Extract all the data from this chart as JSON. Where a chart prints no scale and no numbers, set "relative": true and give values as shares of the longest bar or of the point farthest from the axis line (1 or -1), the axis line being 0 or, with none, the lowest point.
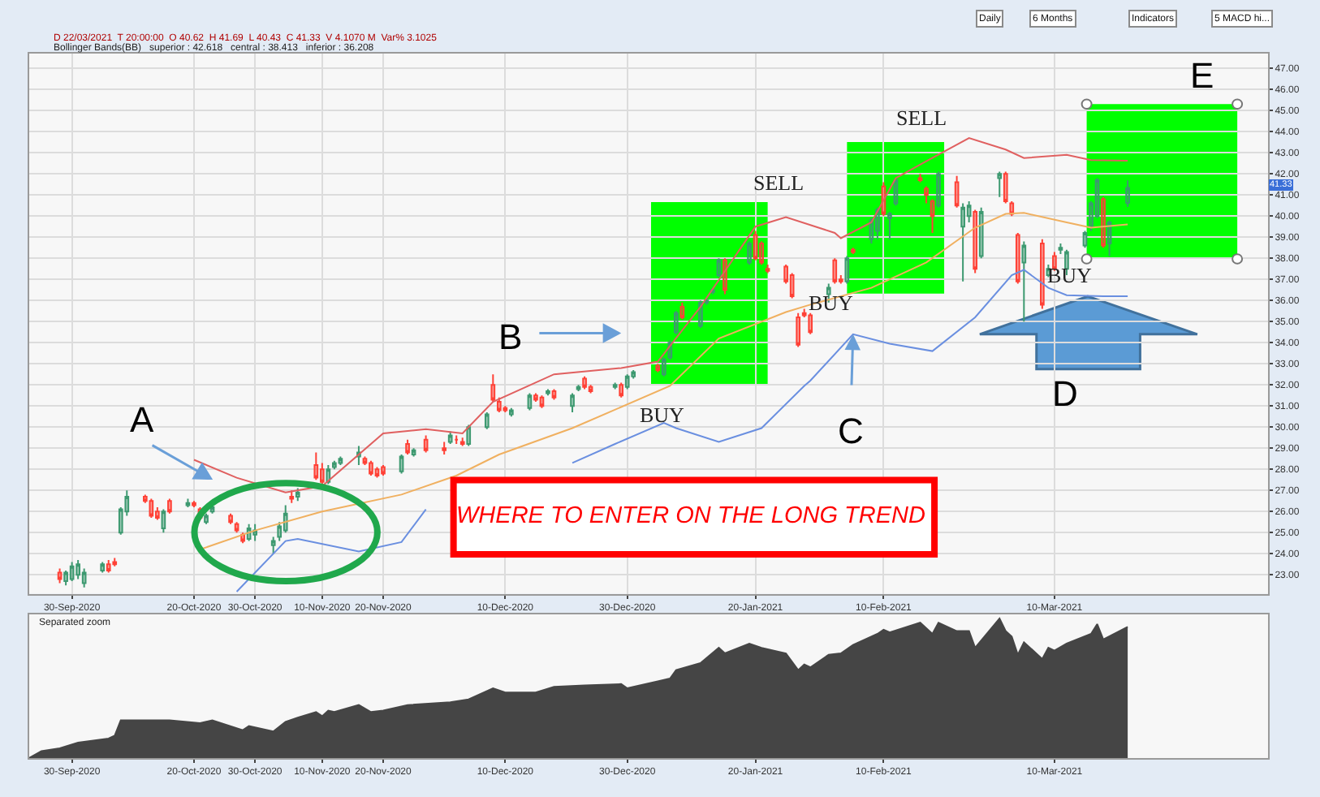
{
  "chart_data": [
    {
      "type": "candlestick",
      "x": [
        "2020-09-28",
        "2020-09-29",
        "2020-09-30",
        "2020-10-01",
        "2020-10-02",
        "2020-10-05",
        "2020-10-06",
        "2020-10-07",
        "2020-10-08",
        "2020-10-09",
        "2020-10-12",
        "2020-10-13",
        "2020-10-14",
        "2020-10-15",
        "2020-10-16",
        "2020-10-19",
        "2020-10-20",
        "2020-10-21",
        "2020-10-22",
        "2020-10-23",
        "2020-10-26",
        "2020-10-27",
        "2020-10-28",
        "2020-10-29",
        "2020-10-30",
        "2020-11-02",
        "2020-11-03",
        "2020-11-04",
        "2020-11-05",
        "2020-11-06",
        "2020-11-09",
        "2020-11-10",
        "2020-11-11",
        "2020-11-12",
        "2020-11-13",
        "2020-11-16",
        "2020-11-17",
        "2020-11-18",
        "2020-11-19",
        "2020-11-20",
        "2020-11-23",
        "2020-11-24",
        "2020-11-25",
        "2020-11-27",
        "2020-11-30",
        "2020-12-01",
        "2020-12-02",
        "2020-12-03",
        "2020-12-04",
        "2020-12-07",
        "2020-12-08",
        "2020-12-09",
        "2020-12-10",
        "2020-12-11",
        "2020-12-14",
        "2020-12-15",
        "2020-12-16",
        "2020-12-17",
        "2020-12-18",
        "2020-12-21",
        "2020-12-22",
        "2020-12-23",
        "2020-12-24",
        "2020-12-28",
        "2020-12-29",
        "2020-12-30",
        "2020-12-31",
        "2021-01-04",
        "2021-01-05",
        "2021-01-06",
        "2021-01-07",
        "2021-01-08",
        "2021-01-11",
        "2021-01-12",
        "2021-01-13",
        "2021-01-14",
        "2021-01-15",
        "2021-01-19",
        "2021-01-20",
        "2021-01-21",
        "2021-01-22",
        "2021-01-25",
        "2021-01-26",
        "2021-01-27",
        "2021-01-28",
        "2021-01-29",
        "2021-02-01",
        "2021-02-02",
        "2021-02-03",
        "2021-02-04",
        "2021-02-05",
        "2021-02-08",
        "2021-02-09",
        "2021-02-10",
        "2021-02-11",
        "2021-02-12",
        "2021-02-16",
        "2021-02-17",
        "2021-02-18",
        "2021-02-19",
        "2021-02-22",
        "2021-02-23",
        "2021-02-24",
        "2021-02-25",
        "2021-02-26",
        "2021-03-01",
        "2021-03-02",
        "2021-03-03",
        "2021-03-04",
        "2021-03-05",
        "2021-03-08",
        "2021-03-09",
        "2021-03-10",
        "2021-03-11",
        "2021-03-12",
        "2021-03-15",
        "2021-03-16",
        "2021-03-17",
        "2021-03-18",
        "2021-03-19",
        "2021-03-22"
      ],
      "ohlc": [
        [
          23.1,
          23.3,
          22.6,
          22.8
        ],
        [
          22.7,
          23.2,
          22.5,
          23.1
        ],
        [
          22.8,
          23.6,
          22.7,
          23.4
        ],
        [
          23.0,
          23.7,
          22.8,
          23.5
        ],
        [
          22.6,
          23.3,
          22.4,
          23.1
        ],
        [
          23.2,
          23.6,
          23.1,
          23.5
        ],
        [
          23.5,
          23.7,
          23.1,
          23.2
        ],
        [
          23.6,
          23.8,
          23.4,
          23.5
        ],
        [
          25.0,
          26.2,
          24.9,
          26.1
        ],
        [
          26.0,
          27.0,
          25.8,
          26.7
        ],
        [
          26.7,
          26.8,
          26.4,
          26.5
        ],
        [
          26.5,
          26.6,
          25.7,
          25.8
        ],
        [
          26.0,
          26.2,
          25.6,
          25.7
        ],
        [
          25.2,
          26.1,
          25.0,
          26.0
        ],
        [
          26.5,
          26.6,
          25.9,
          26.0
        ],
        [
          26.3,
          26.6,
          26.2,
          26.4
        ],
        [
          26.4,
          26.5,
          26.2,
          26.3
        ],
        [
          26.1,
          26.2,
          25.6,
          25.7
        ],
        [
          25.5,
          25.9,
          25.4,
          25.8
        ],
        [
          26.0,
          26.3,
          25.9,
          26.2
        ],
        [
          25.8,
          25.9,
          25.4,
          25.5
        ],
        [
          25.4,
          25.5,
          25.0,
          25.1
        ],
        [
          24.9,
          25.0,
          24.5,
          24.6
        ],
        [
          24.7,
          25.4,
          24.6,
          25.2
        ],
        [
          24.9,
          25.4,
          24.6,
          25.1
        ],
        [
          24.4,
          24.8,
          24.0,
          24.6
        ],
        [
          24.8,
          25.5,
          24.6,
          25.3
        ],
        [
          25.1,
          26.3,
          25.0,
          25.9
        ],
        [
          26.7,
          27.0,
          26.4,
          26.6
        ],
        [
          26.7,
          27.1,
          26.5,
          26.9
        ],
        [
          28.2,
          28.8,
          27.5,
          27.6
        ],
        [
          28.0,
          28.3,
          27.3,
          27.4
        ],
        [
          27.4,
          28.2,
          27.3,
          28.0
        ],
        [
          28.1,
          28.4,
          28.0,
          28.3
        ],
        [
          28.3,
          28.6,
          28.2,
          28.5
        ],
        [
          28.6,
          29.1,
          28.2,
          28.8
        ],
        [
          28.5,
          28.6,
          28.2,
          28.3
        ],
        [
          28.3,
          28.4,
          27.7,
          27.8
        ],
        [
          28.0,
          28.1,
          27.6,
          27.7
        ],
        [
          28.1,
          28.2,
          27.7,
          27.8
        ],
        [
          27.9,
          28.7,
          27.8,
          28.6
        ],
        [
          29.2,
          29.4,
          28.7,
          28.8
        ],
        [
          28.7,
          29.0,
          28.6,
          28.9
        ],
        [
          29.4,
          29.6,
          28.8,
          28.9
        ],
        [
          29.0,
          29.3,
          28.7,
          28.9
        ],
        [
          29.3,
          29.8,
          29.2,
          29.6
        ],
        [
          29.4,
          29.6,
          29.2,
          29.4
        ],
        [
          29.3,
          29.5,
          29.1,
          29.2
        ],
        [
          29.2,
          30.1,
          29.1,
          30.0
        ],
        [
          30.0,
          30.7,
          29.9,
          30.6
        ],
        [
          32.0,
          32.5,
          31.2,
          31.3
        ],
        [
          31.2,
          31.4,
          30.7,
          30.8
        ],
        [
          30.9,
          31.0,
          30.7,
          30.8
        ],
        [
          30.6,
          30.9,
          30.5,
          30.8
        ],
        [
          30.9,
          31.6,
          30.8,
          31.5
        ],
        [
          31.5,
          31.6,
          31.2,
          31.3
        ],
        [
          31.4,
          31.5,
          30.9,
          31.0
        ],
        [
          31.6,
          31.8,
          31.5,
          31.7
        ],
        [
          31.7,
          31.8,
          31.3,
          31.4
        ],
        [
          31.0,
          31.6,
          30.7,
          31.5
        ],
        [
          31.8,
          32.0,
          31.7,
          31.9
        ],
        [
          32.3,
          32.4,
          31.8,
          31.9
        ],
        [
          31.9,
          32.0,
          31.6,
          31.7
        ],
        [
          31.9,
          32.1,
          31.8,
          32.0
        ],
        [
          32.0,
          32.1,
          31.4,
          31.5
        ],
        [
          31.9,
          32.5,
          31.8,
          32.4
        ],
        [
          32.4,
          32.7,
          32.3,
          32.6
        ],
        [
          32.9,
          33.0,
          32.6,
          32.7
        ],
        [
          32.5,
          33.3,
          32.4,
          33.2
        ],
        [
          33.3,
          34.1,
          33.2,
          34.0
        ],
        [
          34.5,
          35.5,
          34.4,
          35.4
        ],
        [
          35.7,
          35.9,
          35.1,
          35.2
        ],
        [
          34.8,
          36.0,
          34.7,
          35.9
        ],
        [
          35.9,
          36.1,
          35.8,
          36.0
        ],
        [
          36.4,
          36.6,
          36.3,
          36.5
        ],
        [
          37.2,
          38.0,
          37.1,
          37.9
        ],
        [
          37.9,
          38.0,
          36.3,
          36.5
        ],
        [
          37.8,
          38.8,
          37.7,
          38.7
        ],
        [
          39.1,
          39.3,
          37.9,
          38.0
        ],
        [
          38.7,
          38.8,
          37.7,
          37.8
        ],
        [
          37.5,
          37.7,
          37.3,
          37.4
        ],
        [
          37.6,
          37.7,
          36.8,
          36.9
        ],
        [
          37.2,
          37.3,
          36.1,
          36.2
        ],
        [
          35.2,
          35.4,
          33.8,
          33.9
        ],
        [
          35.4,
          35.6,
          35.2,
          35.3
        ],
        [
          35.3,
          35.4,
          34.4,
          34.5
        ],
        [
          36.3,
          36.8,
          35.9,
          36.6
        ],
        [
          37.9,
          38.0,
          36.8,
          36.9
        ],
        [
          37.0,
          37.2,
          36.8,
          36.9
        ],
        [
          36.9,
          38.1,
          36.8,
          38.0
        ],
        [
          38.4,
          38.5,
          38.2,
          38.3
        ],
        [
          38.9,
          39.9,
          38.7,
          39.8
        ],
        [
          39.3,
          40.4,
          38.9,
          40.3
        ],
        [
          41.4,
          41.6,
          40.0,
          40.1
        ],
        [
          39.9,
          40.2,
          38.9,
          40.1
        ],
        [
          40.6,
          41.8,
          40.5,
          41.7
        ],
        [
          41.8,
          42.0,
          41.6,
          41.7
        ],
        [
          41.3,
          41.4,
          40.6,
          41.0
        ],
        [
          40.7,
          40.8,
          39.2,
          40.0
        ],
        [
          40.5,
          42.1,
          40.4,
          42.0
        ],
        [
          41.6,
          41.9,
          40.4,
          40.5
        ],
        [
          39.5,
          40.6,
          36.9,
          40.4
        ],
        [
          40.0,
          40.7,
          39.7,
          40.5
        ],
        [
          40.2,
          40.3,
          37.3,
          37.5
        ],
        [
          38.1,
          40.4,
          38.0,
          40.2
        ],
        [
          41.8,
          42.1,
          40.9,
          42.0
        ],
        [
          42.0,
          42.1,
          40.6,
          40.7
        ],
        [
          40.6,
          40.7,
          40.0,
          40.1
        ],
        [
          39.1,
          39.2,
          36.8,
          36.9
        ],
        [
          37.8,
          38.8,
          35.0,
          38.6
        ],
        [
          38.7,
          38.9,
          35.6,
          35.8
        ],
        [
          37.2,
          37.7,
          37.1,
          37.5
        ],
        [
          38.1,
          38.3,
          37.4,
          37.5
        ],
        [
          38.4,
          38.7,
          38.2,
          38.5
        ],
        [
          37.5,
          38.4,
          37.2,
          38.3
        ],
        [
          38.6,
          39.3,
          38.5,
          39.2
        ],
        [
          39.5,
          40.7,
          39.3,
          40.6
        ],
        [
          40.0,
          41.8,
          39.9,
          41.7
        ],
        [
          40.8,
          40.9,
          38.5,
          38.6
        ],
        [
          38.7,
          39.8,
          38.1,
          39.7
        ],
        [
          40.62,
          41.69,
          40.43,
          41.33
        ]
      ],
      "series": [
        {
          "type": "line",
          "color": "#e06060",
          "x": [
            "2020-10-20",
            "2020-10-27",
            "2020-11-04",
            "2020-11-10",
            "2020-11-20",
            "2020-11-27",
            "2020-12-03",
            "2020-12-08",
            "2020-12-18",
            "2020-12-29",
            "2021-01-04",
            "2021-01-11",
            "2021-01-20",
            "2021-01-25",
            "2021-02-02",
            "2021-02-03",
            "2021-02-08",
            "2021-02-12",
            "2021-02-17",
            "2021-02-24",
            "2021-03-02",
            "2021-03-05",
            "2021-03-12",
            "2021-03-16",
            "2021-03-22"
          ],
          "values": [
            28.45,
            27.6,
            26.9,
            27.2,
            29.7,
            29.9,
            29.7,
            31.2,
            32.5,
            32.8,
            33.1,
            35.7,
            39.5,
            39.95,
            39.2,
            38.95,
            39.7,
            41.8,
            42.6,
            43.7,
            43.15,
            42.75,
            42.9,
            42.65,
            42.62
          ]
        },
        {
          "type": "line",
          "color": "#f0b060",
          "x": [
            "2020-10-21",
            "2020-10-30",
            "2020-11-10",
            "2020-11-23",
            "2020-12-02",
            "2020-12-09",
            "2020-12-21",
            "2021-01-06",
            "2021-01-14",
            "2021-01-25",
            "2021-01-29",
            "2021-02-08",
            "2021-02-17",
            "2021-02-25",
            "2021-03-02",
            "2021-03-05",
            "2021-03-12",
            "2021-03-16",
            "2021-03-22"
          ],
          "values": [
            24.2,
            25.1,
            26.0,
            26.8,
            27.7,
            28.7,
            29.95,
            31.95,
            34.2,
            35.45,
            35.8,
            36.6,
            37.8,
            39.45,
            40.1,
            40.15,
            39.7,
            39.45,
            39.6
          ]
        },
        {
          "type": "line",
          "color": "#6a8fe0",
          "x": [
            "2020-10-27",
            "2020-11-04",
            "2020-11-06",
            "2020-11-16",
            "2020-11-23",
            "2020-11-27",
            "2020-11-30",
            "2020-12-21",
            "2020-12-28",
            "2021-01-05",
            "2021-01-07",
            "2021-01-14",
            "2021-01-21",
            "2021-01-28",
            "2021-01-29",
            "2021-02-05",
            "2021-02-11",
            "2021-02-18",
            "2021-02-25",
            "2021-03-03",
            "2021-03-05",
            "2021-03-09",
            "2021-03-12",
            "2021-03-18",
            "2021-03-22"
          ],
          "values": [
            22.2,
            24.6,
            24.7,
            24.1,
            24.55,
            26.1,
            null,
            28.3,
            29.2,
            30.2,
            29.95,
            29.3,
            29.95,
            31.95,
            32.2,
            34.4,
            33.95,
            33.6,
            35.2,
            37.2,
            37.45,
            36.6,
            36.25,
            36.2,
            36.2
          ]
        }
      ],
      "xlim": [
        "2020-09-23",
        "2021-04-14"
      ],
      "ylim": [
        22.1,
        47.7
      ],
      "xticks": [
        {
          "value": "2020-09-30",
          "label": "30-Sep-2020"
        },
        {
          "value": "2020-10-20",
          "label": "20-Oct-2020"
        },
        {
          "value": "2020-10-30",
          "label": "30-Oct-2020"
        },
        {
          "value": "2020-11-10",
          "label": "10-Nov-2020"
        },
        {
          "value": "2020-11-20",
          "label": "20-Nov-2020"
        },
        {
          "value": "2020-12-10",
          "label": "10-Dec-2020"
        },
        {
          "value": "2020-12-30",
          "label": "30-Dec-2020"
        },
        {
          "value": "2021-01-20",
          "label": "20-Jan-2021"
        },
        {
          "value": "2021-02-10",
          "label": "10-Feb-2021"
        },
        {
          "value": "2021-03-10",
          "label": "10-Mar-2021"
        }
      ],
      "yticks": [
        {
          "value": 23,
          "label": "23.00"
        },
        {
          "value": 24,
          "label": "24.00"
        },
        {
          "value": 25,
          "label": "25.00"
        },
        {
          "value": 26,
          "label": "26.00"
        },
        {
          "value": 27,
          "label": "27.00"
        },
        {
          "value": 28,
          "label": "28.00"
        },
        {
          "value": 29,
          "label": "29.00"
        },
        {
          "value": 30,
          "label": "30.00"
        },
        {
          "value": 31,
          "label": "31.00"
        },
        {
          "value": 32,
          "label": "32.00"
        },
        {
          "value": 33,
          "label": "33.00"
        },
        {
          "value": 34,
          "label": "34.00"
        },
        {
          "value": 35,
          "label": "35.00"
        },
        {
          "value": 36,
          "label": "36.00"
        },
        {
          "value": 37,
          "label": "37.00"
        },
        {
          "value": 38,
          "label": "38.00"
        },
        {
          "value": 39,
          "label": "39.00"
        },
        {
          "value": 40,
          "label": "40.00"
        },
        {
          "value": 41,
          "label": "41.00"
        },
        {
          "value": 42,
          "label": "42.00"
        },
        {
          "value": 43,
          "label": "43.00"
        },
        {
          "value": 44,
          "label": "44.00"
        },
        {
          "value": 45,
          "label": "45.00"
        },
        {
          "value": 46,
          "label": "46.00"
        },
        {
          "value": 47,
          "label": "47.00"
        }
      ],
      "grid": true,
      "annotations": [
        "WHERE TO ENTER ON THE LONG TREND",
        "D 22/03/2021  T 20:00:00  O 40.62  H 41.69  L 40.43  C 41.33  V 4.1070 M  Var% 3.1025",
        "Bollinger Bands(BB)   superior : 42.618   central : 38.413   inferior : 36.208",
        "Daily",
        "6 Months",
        "Indicators",
        "5 MACD hi...",
        "41.33",
        "A",
        "B",
        {
          "text": "C",
          "x": "2021-02-05",
          "y": 34.4
        },
        "D",
        "E",
        "BUY",
        "SELL",
        "BUY",
        "SELL",
        "BUY"
      ]
    },
    {
      "type": "area",
      "relative": true,
      "color": "#454545",
      "x": [
        "2020-09-23",
        "2020-09-25",
        "2020-09-28",
        "2020-10-01",
        "2020-10-06",
        "2020-10-07",
        "2020-10-08",
        "2020-10-13",
        "2020-10-16",
        "2020-10-21",
        "2020-10-23",
        "2020-10-28",
        "2020-10-29",
        "2020-11-02",
        "2020-11-04",
        "2020-11-06",
        "2020-11-09",
        "2020-11-10",
        "2020-11-11",
        "2020-11-12",
        "2020-11-16",
        "2020-11-18",
        "2020-11-20",
        "2020-11-24",
        "2020-12-01",
        "2020-12-04",
        "2020-12-08",
        "2020-12-10",
        "2020-12-15",
        "2020-12-18",
        "2020-12-23",
        "2020-12-29",
        "2020-12-30",
        "2021-01-04",
        "2021-01-06",
        "2021-01-07",
        "2021-01-11",
        "2021-01-14",
        "2021-01-15",
        "2021-01-19",
        "2021-01-21",
        "2021-01-25",
        "2021-01-27",
        "2021-01-28",
        "2021-01-29",
        "2021-02-01",
        "2021-02-03",
        "2021-02-05",
        "2021-02-09",
        "2021-02-10",
        "2021-02-11",
        "2021-02-16",
        "2021-02-18",
        "2021-02-19",
        "2021-02-22",
        "2021-02-24",
        "2021-02-25",
        "2021-03-01",
        "2021-03-02",
        "2021-03-03",
        "2021-03-04",
        "2021-03-05",
        "2021-03-08",
        "2021-03-09",
        "2021-03-10",
        "2021-03-12",
        "2021-03-16",
        "2021-03-17",
        "2021-03-18",
        "2021-03-22"
      ],
      "values": [
        0.0,
        0.05,
        0.07,
        0.11,
        0.14,
        0.16,
        0.27,
        0.27,
        0.27,
        0.25,
        0.27,
        0.2,
        0.23,
        0.19,
        0.26,
        0.29,
        0.33,
        0.3,
        0.34,
        0.33,
        0.38,
        0.33,
        0.34,
        0.38,
        0.4,
        0.42,
        0.5,
        0.47,
        0.47,
        0.51,
        0.52,
        0.53,
        0.5,
        0.55,
        0.57,
        0.63,
        0.68,
        0.79,
        0.75,
        0.82,
        0.79,
        0.75,
        0.63,
        0.67,
        0.65,
        0.74,
        0.75,
        0.81,
        0.89,
        0.92,
        0.9,
        0.97,
        0.89,
        0.97,
        0.91,
        0.91,
        0.79,
        1.0,
        0.91,
        0.87,
        0.74,
        0.83,
        0.71,
        0.79,
        0.77,
        0.82,
        0.89,
        0.96,
        0.85,
        0.94
      ],
      "xlim": [
        "2020-09-23",
        "2021-04-14"
      ],
      "xticks": [
        {
          "value": "2020-09-30",
          "label": "30-Sep-2020"
        },
        {
          "value": "2020-10-20",
          "label": "20-Oct-2020"
        },
        {
          "value": "2020-10-30",
          "label": "30-Oct-2020"
        },
        {
          "value": "2020-11-10",
          "label": "10-Nov-2020"
        },
        {
          "value": "2020-11-20",
          "label": "20-Nov-2020"
        },
        {
          "value": "2020-12-10",
          "label": "10-Dec-2020"
        },
        {
          "value": "2020-12-30",
          "label": "30-Dec-2020"
        },
        {
          "value": "2021-01-20",
          "label": "20-Jan-2021"
        },
        {
          "value": "2021-02-10",
          "label": "10-Feb-2021"
        },
        {
          "value": "2021-03-10",
          "label": "10-Mar-2021"
        }
      ],
      "tick_labels": "x",
      "annotations": [
        "Separated zoom"
      ]
    }
  ]
}
